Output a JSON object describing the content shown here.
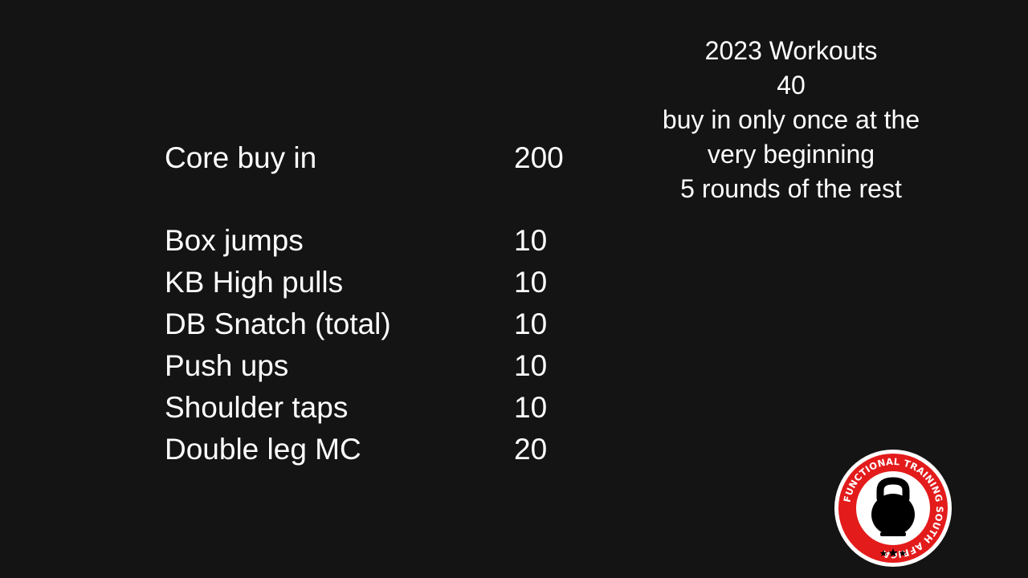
{
  "info": {
    "line1": "2023 Workouts",
    "line2": "40",
    "line3": "buy in only once at the",
    "line4": "very beginning",
    "line5": "5 rounds of the rest"
  },
  "buy_in": {
    "label": "Core buy in",
    "value": "200"
  },
  "exercises": [
    {
      "label": "Box jumps",
      "value": "10"
    },
    {
      "label": "KB High pulls",
      "value": "10"
    },
    {
      "label": "DB Snatch (total)",
      "value": "10"
    },
    {
      "label": "Push ups",
      "value": "10"
    },
    {
      "label": "Shoulder taps",
      "value": "10"
    },
    {
      "label": "Double leg MC",
      "value": "20"
    }
  ],
  "logo": {
    "text": "FUNCTIONAL TRAINING SOUTH AFRICA",
    "icon": "kettlebell-icon",
    "colors": {
      "ring": "#e31b1b",
      "inner": "#ffffff",
      "bell": "#000000",
      "background": "#141414"
    }
  }
}
